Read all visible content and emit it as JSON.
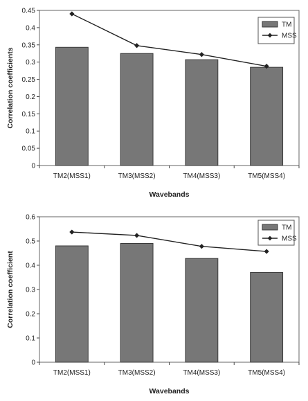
{
  "chart_data": [
    {
      "type": "bar",
      "categories": [
        "TM2(MSS1)",
        "TM3(MSS2)",
        "TM4(MSS3)",
        "TM5(MSS4)"
      ],
      "series": [
        {
          "name": "TM",
          "type": "bar",
          "values": [
            0.343,
            0.325,
            0.307,
            0.285
          ],
          "color": "#777777"
        },
        {
          "name": "MSS",
          "type": "line",
          "values": [
            0.44,
            0.348,
            0.322,
            0.288
          ],
          "color": "#222222"
        }
      ],
      "xlabel": "Wavebands",
      "ylabel": "Correlation coefficients",
      "ylim": [
        0,
        0.45
      ],
      "yticks": [
        "0",
        "0.05",
        "0.1",
        "0.15",
        "0.2",
        "0.25",
        "0.3",
        "0.35",
        "0.4",
        "0.45"
      ],
      "grid": false,
      "legend": "top-right"
    },
    {
      "type": "bar",
      "categories": [
        "TM2(MSS1)",
        "TM3(MSS2)",
        "TM4(MSS3)",
        "TM5(MSS4)"
      ],
      "series": [
        {
          "name": "TM",
          "type": "bar",
          "values": [
            0.48,
            0.49,
            0.428,
            0.37
          ],
          "color": "#777777"
        },
        {
          "name": "MSS",
          "type": "line",
          "values": [
            0.537,
            0.523,
            0.478,
            0.457
          ],
          "color": "#222222"
        }
      ],
      "xlabel": "Wavebands",
      "ylabel": "Correlation coefficient",
      "ylim": [
        0,
        0.6
      ],
      "yticks": [
        "0",
        "0.1",
        "0.2",
        "0.3",
        "0.4",
        "0.5",
        "0.6"
      ],
      "grid": false,
      "legend": "top-right"
    }
  ]
}
